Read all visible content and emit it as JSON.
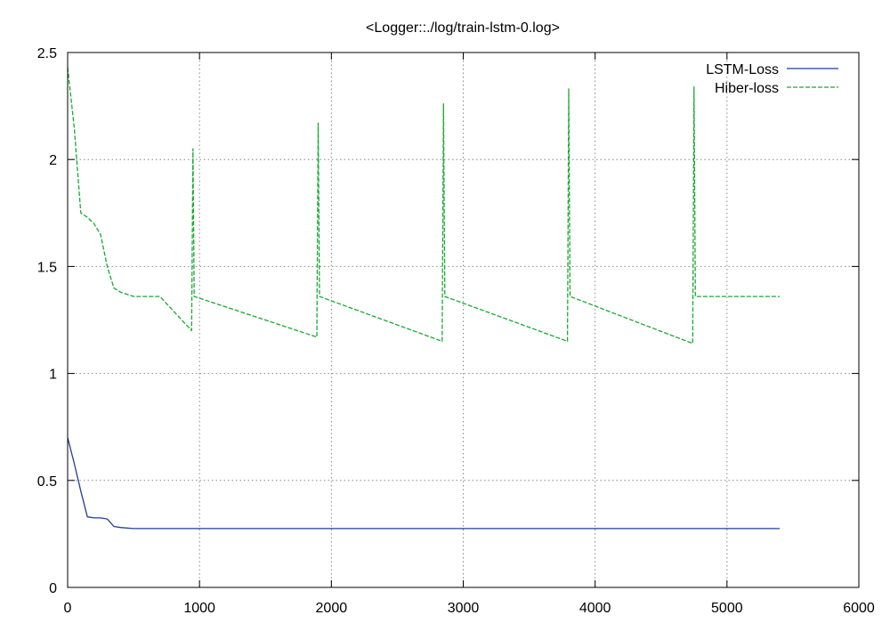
{
  "chart_data": {
    "type": "line",
    "title": "<Logger::./log/train-lstm-0.log>",
    "xlabel": "",
    "ylabel": "",
    "xlim": [
      0,
      6000
    ],
    "ylim": [
      0,
      2.5
    ],
    "x_ticks": [
      0,
      1000,
      2000,
      3000,
      4000,
      5000,
      6000
    ],
    "y_ticks": [
      0,
      0.5,
      1,
      1.5,
      2,
      2.5
    ],
    "x_tick_labels": [
      "0",
      "1000",
      "2000",
      "3000",
      "4000",
      "5000",
      "6000"
    ],
    "y_tick_labels": [
      "0",
      "0.5",
      "1",
      "1.5",
      "2",
      "2.5"
    ],
    "grid": true,
    "legend_position": "top-right",
    "series": [
      {
        "name": "LSTM-Loss",
        "color": "#1f3f99",
        "style": "solid",
        "x": [
          0,
          50,
          100,
          150,
          200,
          250,
          300,
          350,
          400,
          500,
          700,
          1000,
          2000,
          3000,
          4000,
          5000,
          5400
        ],
        "y": [
          0.7,
          0.58,
          0.45,
          0.33,
          0.325,
          0.325,
          0.32,
          0.285,
          0.28,
          0.275,
          0.275,
          0.275,
          0.275,
          0.275,
          0.275,
          0.275,
          0.275
        ]
      },
      {
        "name": "Hiber-loss",
        "color": "#1aa832",
        "style": "dashed",
        "x": [
          0,
          50,
          100,
          150,
          200,
          250,
          300,
          350,
          400,
          500,
          700,
          940,
          950,
          960,
          1890,
          1900,
          1910,
          2840,
          2850,
          2860,
          3790,
          3800,
          3810,
          4740,
          4750,
          4760,
          5400
        ],
        "y": [
          2.43,
          2.15,
          1.75,
          1.73,
          1.7,
          1.65,
          1.5,
          1.4,
          1.38,
          1.36,
          1.36,
          1.2,
          2.05,
          1.36,
          1.17,
          2.17,
          1.36,
          1.15,
          2.26,
          1.36,
          1.15,
          2.33,
          1.36,
          1.14,
          2.34,
          1.36,
          1.36
        ]
      }
    ]
  }
}
